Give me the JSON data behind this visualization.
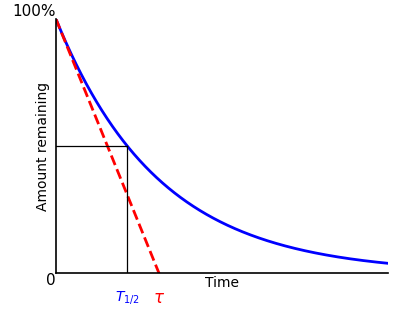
{
  "xlabel": "Time",
  "ylabel": "Amount remaining",
  "y_top_label": "100%",
  "y_bottom_label": "0",
  "bg_color": "#ffffff",
  "curve_color": "#0000ff",
  "tangent_color": "#ff0000",
  "annotation_color": "#000000",
  "t_half_color": "#0000ff",
  "tau_color": "#ff0000",
  "decay_rate": 0.46,
  "t_max": 7.0,
  "curve_lw": 2.0,
  "tangent_lw": 2.0,
  "annotation_lw": 0.9,
  "spine_lw": 1.2
}
